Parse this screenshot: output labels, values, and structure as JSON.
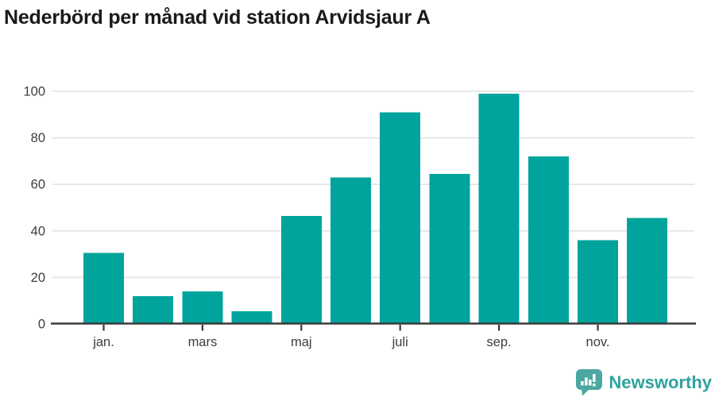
{
  "header": {
    "title": "Nederbörd per månad vid station Arvidsjaur A",
    "title_color": "#1a1a1a"
  },
  "chart_data": {
    "type": "bar",
    "title": "Nederbörd per månad vid station Arvidsjaur A",
    "values": [
      30.5,
      12,
      14,
      5.5,
      46.5,
      63,
      91,
      64.5,
      99,
      72,
      36,
      45.5
    ],
    "n_bars": 12,
    "x_tick_labels": [
      "jan.",
      "mars",
      "maj",
      "juli",
      "sep.",
      "nov."
    ],
    "x_tick_indices": [
      0,
      2,
      4,
      6,
      8,
      10
    ],
    "y_ticks": [
      0,
      20,
      40,
      60,
      80,
      100
    ],
    "ylim": [
      0,
      100
    ],
    "grid": "horizontal",
    "legend": "none",
    "bar_color": "#00a49c",
    "axis_color": "#3a3a3a",
    "grid_color": "#e2e2e2",
    "label_color": "#3d3d3d"
  },
  "footer": {
    "brand": "Newsworthy",
    "brand_color": "#2fa39d",
    "logo_icon": "bar-chart-speech-bubble-icon",
    "logo_icon_color": "#4ba7a1"
  }
}
